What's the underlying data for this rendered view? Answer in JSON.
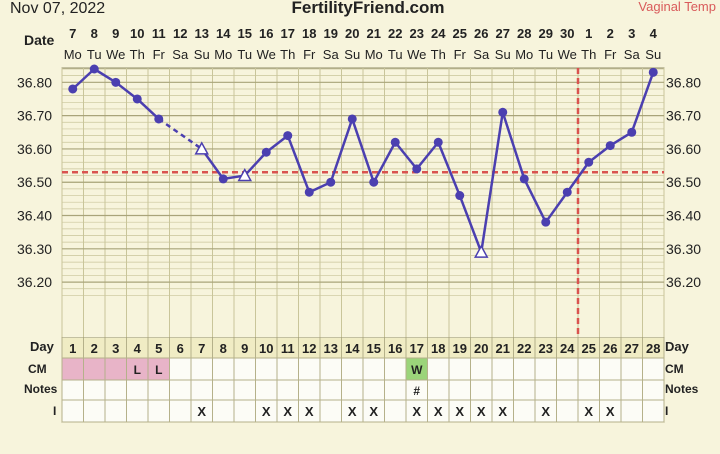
{
  "header": {
    "date": "Nov 07, 2022",
    "brand": "FertilityFriend.com",
    "temp_method": "Vaginal Temp"
  },
  "row_labels": {
    "date": "Date",
    "day": "Day",
    "cm": "CM",
    "notes": "Notes",
    "i": "I"
  },
  "colors": {
    "background": "#f7f4dc",
    "grid": "#c9c59a",
    "line": "#4b3fb0",
    "coverline": "#d9534f",
    "cm_pink": "#e8b4c8",
    "cm_green": "#9bd47a",
    "table_bg": "#fcfcf6"
  },
  "chart_data": {
    "type": "line",
    "ylim": [
      36.14,
      36.88
    ],
    "yticks": [
      "36.80",
      "36.70",
      "36.60",
      "36.50",
      "36.40",
      "36.30",
      "36.20"
    ],
    "dates": [
      "7",
      "8",
      "9",
      "10",
      "11",
      "12",
      "13",
      "14",
      "15",
      "16",
      "17",
      "18",
      "19",
      "20",
      "21",
      "22",
      "23",
      "24",
      "25",
      "26",
      "27",
      "28",
      "29",
      "30",
      "1",
      "2",
      "3",
      "4"
    ],
    "weekdays": [
      "Mo",
      "Tu",
      "We",
      "Th",
      "Fr",
      "Sa",
      "Su",
      "Mo",
      "Tu",
      "We",
      "Th",
      "Fr",
      "Sa",
      "Su",
      "Mo",
      "Tu",
      "We",
      "Th",
      "Fr",
      "Sa",
      "Su",
      "Mo",
      "Tu",
      "We",
      "Th",
      "Fr",
      "Sa",
      "Su"
    ],
    "cycle_days": [
      "1",
      "2",
      "3",
      "4",
      "5",
      "6",
      "7",
      "8",
      "9",
      "10",
      "11",
      "12",
      "13",
      "14",
      "15",
      "16",
      "17",
      "18",
      "19",
      "20",
      "21",
      "22",
      "23",
      "24",
      "25",
      "26",
      "27",
      "28"
    ],
    "temps": [
      36.78,
      36.84,
      36.8,
      36.75,
      36.69,
      null,
      36.6,
      36.51,
      36.52,
      36.59,
      36.64,
      36.47,
      36.5,
      36.69,
      36.5,
      36.62,
      36.54,
      36.62,
      36.46,
      36.29,
      36.71,
      36.51,
      36.38,
      36.47,
      36.56,
      36.61,
      36.65,
      36.83
    ],
    "open_markers": [
      7,
      9,
      20
    ],
    "dashed_segments": [
      [
        5,
        7
      ]
    ],
    "coverline": 36.53,
    "ovulation_day": 24,
    "cm": [
      "",
      "",
      "",
      "L",
      "L",
      "",
      "",
      "",
      "",
      "",
      "",
      "",
      "",
      "",
      "",
      "",
      "W",
      "",
      "",
      "",
      "",
      "",
      "",
      "",
      "",
      "",
      "",
      ""
    ],
    "cm_colors": [
      "pink",
      "pink",
      "pink",
      "pink",
      "pink",
      "",
      "",
      "",
      "",
      "",
      "",
      "",
      "",
      "",
      "",
      "",
      "green",
      "",
      "",
      "",
      "",
      "",
      "",
      "",
      "",
      "",
      "",
      ""
    ],
    "notes": [
      "",
      "",
      "",
      "",
      "",
      "",
      "",
      "",
      "",
      "",
      "",
      "",
      "",
      "",
      "",
      "",
      "#",
      "",
      "",
      "",
      "",
      "",
      "",
      "",
      "",
      "",
      "",
      ""
    ],
    "intercourse": [
      "",
      "",
      "",
      "",
      "",
      "",
      "X",
      "",
      "",
      "X",
      "X",
      "X",
      "",
      "X",
      "X",
      "",
      "X",
      "X",
      "X",
      "X",
      "X",
      "",
      "X",
      "",
      "X",
      "X",
      "",
      ""
    ]
  }
}
